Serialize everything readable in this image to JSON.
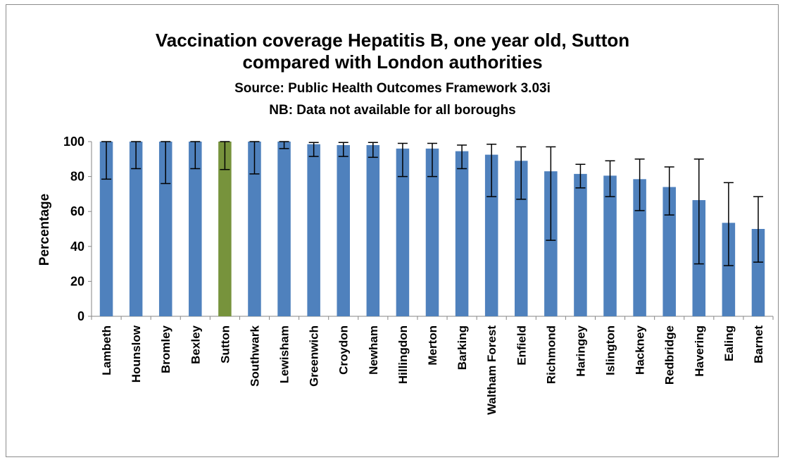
{
  "chart_data": {
    "type": "bar",
    "title": "Vaccination coverage Hepatitis B, one year old, Sutton compared with London authorities",
    "title_lines": [
      "Vaccination coverage Hepatitis B, one year old, Sutton",
      "compared with London authorities"
    ],
    "subtitle": [
      "Source: Public Health Outcomes Framework 3.03i",
      "NB: Data not available for all boroughs"
    ],
    "xlabel": "",
    "ylabel": "Percentage",
    "ylim": [
      0,
      100
    ],
    "yticks": [
      0,
      20,
      40,
      60,
      80,
      100
    ],
    "grid": false,
    "categories": [
      "Lambeth",
      "Hounslow",
      "Bromley",
      "Bexley",
      "Sutton",
      "Southwark",
      "Lewisham",
      "Greenwich",
      "Croydon",
      "Newham",
      "Hillingdon",
      "Merton",
      "Barking",
      "Waltham Forest",
      "Enfield",
      "Richmond",
      "Haringey",
      "Islington",
      "Hackney",
      "Redbridge",
      "Havering",
      "Ealing",
      "Barnet"
    ],
    "values": [
      100,
      100,
      100,
      100,
      100,
      100,
      100,
      98.5,
      98,
      98,
      96,
      96,
      94.5,
      92.5,
      89,
      83,
      81.5,
      80.5,
      78.5,
      74,
      66.5,
      53.5,
      50
    ],
    "error_low": [
      78.5,
      84.5,
      76,
      84.5,
      84,
      81.5,
      96,
      91.5,
      91.5,
      91,
      80,
      80,
      84.5,
      68.5,
      67,
      43.5,
      73.5,
      68.5,
      60.5,
      58,
      30,
      29,
      31
    ],
    "error_high": [
      100,
      100,
      100,
      100,
      100,
      100,
      100,
      99.5,
      99.5,
      99.5,
      99,
      99,
      98,
      98.5,
      97,
      97,
      87,
      89,
      90,
      85.5,
      90,
      76.5,
      68.5
    ],
    "highlight_category": "Sutton",
    "colors": {
      "bar": "#4f81bd",
      "highlight": "#77933c",
      "error_bar": "#000000",
      "axis": "#868686"
    }
  }
}
